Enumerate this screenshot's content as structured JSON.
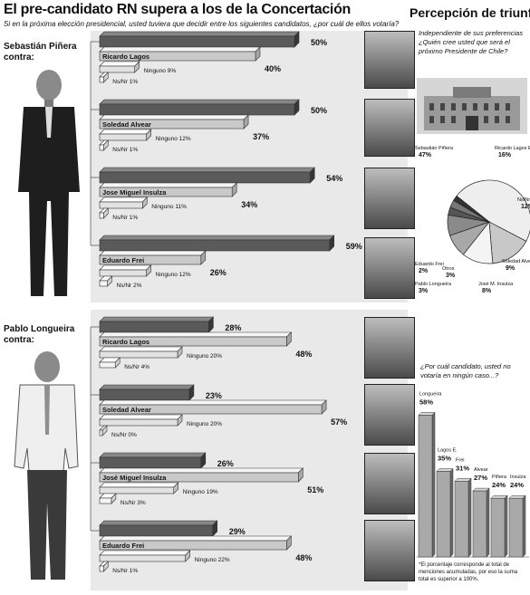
{
  "header": {
    "title": "El pre-candidato RN supera a los de la Concertación",
    "subtitle": "Si en la próxima elección presidencial, usted tuviera que decidir entre los siguientes candidatos, ¿por cuál de ellos votaría?"
  },
  "sections": [
    {
      "name_line1": "Sebastián Piñera",
      "name_line2": "contra:",
      "matchups": [
        {
          "opponent": "Ricardo Lagos",
          "main_pct": 50,
          "main_label": "50%",
          "opp_pct": 40,
          "opp_label": "40%",
          "ninguno_label": "Ninguno 9%",
          "nsnr_label": "Ns/Nr 1%"
        },
        {
          "opponent": "Soledad Alvear",
          "main_pct": 50,
          "main_label": "50%",
          "opp_pct": 37,
          "opp_label": "37%",
          "ninguno_label": "Ninguno 12%",
          "nsnr_label": "Ns/Nr 1%"
        },
        {
          "opponent": "Jose Miguel Insulza",
          "main_pct": 54,
          "main_label": "54%",
          "opp_pct": 34,
          "opp_label": "34%",
          "ninguno_label": "Ninguno 11%",
          "nsnr_label": "Ns/Nr 1%"
        },
        {
          "opponent": "Eduardo Frei",
          "main_pct": 59,
          "main_label": "59%",
          "opp_pct": 26,
          "opp_label": "26%",
          "ninguno_label": "Ninguno 12%",
          "nsnr_label": "Ns/Nr 2%"
        }
      ]
    },
    {
      "name_line1": "Pablo Longueira",
      "name_line2": "contra:",
      "matchups": [
        {
          "opponent": "Ricardo Lagos",
          "main_pct": 28,
          "main_label": "28%",
          "opp_pct": 48,
          "opp_label": "48%",
          "ninguno_label": "Ninguno 20%",
          "nsnr_label": "Ns/Nr 4%"
        },
        {
          "opponent": "Soledad Alvear",
          "main_pct": 23,
          "main_label": "23%",
          "opp_pct": 57,
          "opp_label": "57%",
          "ninguno_label": "Ninguno 20%",
          "nsnr_label": "Ns/Nr 0%"
        },
        {
          "opponent": "José Miguel Insulza",
          "main_pct": 26,
          "main_label": "26%",
          "opp_pct": 51,
          "opp_label": "51%",
          "ninguno_label": "Ninguno 19%",
          "nsnr_label": "Ns/Nr 3%"
        },
        {
          "opponent": "Eduardo Frei",
          "main_pct": 29,
          "main_label": "29%",
          "opp_pct": 48,
          "opp_label": "48%",
          "ninguno_label": "Ninguno 22%",
          "nsnr_label": "Ns/Nr 1%"
        }
      ]
    }
  ],
  "perception": {
    "title": "Percepción de triunfo",
    "question": "Independiente de sus preferencias ¿Quién cree usted que será el próximo Presidente de Chile?"
  },
  "rejection": {
    "question": "¿Por cuál candidato, usted no votaría en ningún caso...?",
    "footnote": "*El porcentaje corresponde al total de menciones acumuladas, por eso la suma total es superior a 100%."
  },
  "chart_data": [
    {
      "type": "bar",
      "subtype": "horizontal-stacked-matchups",
      "title": "El pre-candidato RN supera a los de la Concertación",
      "groups": [
        {
          "candidate": "Sebastián Piñera",
          "matchups": [
            {
              "opponent": "Ricardo Lagos",
              "candidate": 50,
              "opponent_value": 40,
              "Ninguno": 9,
              "Ns/Nr": 1
            },
            {
              "opponent": "Soledad Alvear",
              "candidate": 50,
              "opponent_value": 37,
              "Ninguno": 12,
              "Ns/Nr": 1
            },
            {
              "opponent": "Jose Miguel Insulza",
              "candidate": 54,
              "opponent_value": 34,
              "Ninguno": 11,
              "Ns/Nr": 1
            },
            {
              "opponent": "Eduardo Frei",
              "candidate": 59,
              "opponent_value": 26,
              "Ninguno": 12,
              "Ns/Nr": 2
            }
          ]
        },
        {
          "candidate": "Pablo Longueira",
          "matchups": [
            {
              "opponent": "Ricardo Lagos",
              "candidate": 28,
              "opponent_value": 48,
              "Ninguno": 20,
              "Ns/Nr": 4
            },
            {
              "opponent": "Soledad Alvear",
              "candidate": 23,
              "opponent_value": 57,
              "Ninguno": 20,
              "Ns/Nr": 0
            },
            {
              "opponent": "José Miguel Insulza",
              "candidate": 26,
              "opponent_value": 51,
              "Ninguno": 19,
              "Ns/Nr": 3
            },
            {
              "opponent": "Eduardo Frei",
              "candidate": 29,
              "opponent_value": 48,
              "Ninguno": 22,
              "Ns/Nr": 1
            }
          ]
        }
      ]
    },
    {
      "type": "pie",
      "title": "Percepción de triunfo",
      "slices": [
        {
          "label": "Sebastián Piñera",
          "value": 47,
          "value_label": "47%",
          "color": "#eeeeee"
        },
        {
          "label": "Ricardo Lagos E.",
          "value": 16,
          "value_label": "16%",
          "color": "#c8c8c8"
        },
        {
          "label": "Ns/Nr",
          "value": 12,
          "value_label": "12%",
          "color": "#f4f4f4"
        },
        {
          "label": "Soledad Alvear",
          "value": 9,
          "value_label": "9%",
          "color": "#a8a8a8"
        },
        {
          "label": "José M. Insulza",
          "value": 8,
          "value_label": "8%",
          "color": "#8a8a8a"
        },
        {
          "label": "Pablo Longueira",
          "value": 3,
          "value_label": "3%",
          "color": "#555555"
        },
        {
          "label": "Otros",
          "value": 3,
          "value_label": "3%",
          "color": "#777777"
        },
        {
          "label": "Eduardo Frei",
          "value": 2,
          "value_label": "2%",
          "color": "#333333"
        }
      ]
    },
    {
      "type": "bar",
      "title": "¿Por cuál candidato, usted no votaría en ningún caso...?",
      "categories": [
        "Longueira",
        "Lagos E.",
        "Frei",
        "Alvear",
        "Piñera",
        "Insulza"
      ],
      "values": [
        58,
        35,
        31,
        27,
        24,
        24
      ],
      "value_labels": [
        "58%",
        "35%",
        "31%",
        "27%",
        "24%",
        "24%"
      ],
      "ylim": [
        0,
        60
      ]
    }
  ]
}
